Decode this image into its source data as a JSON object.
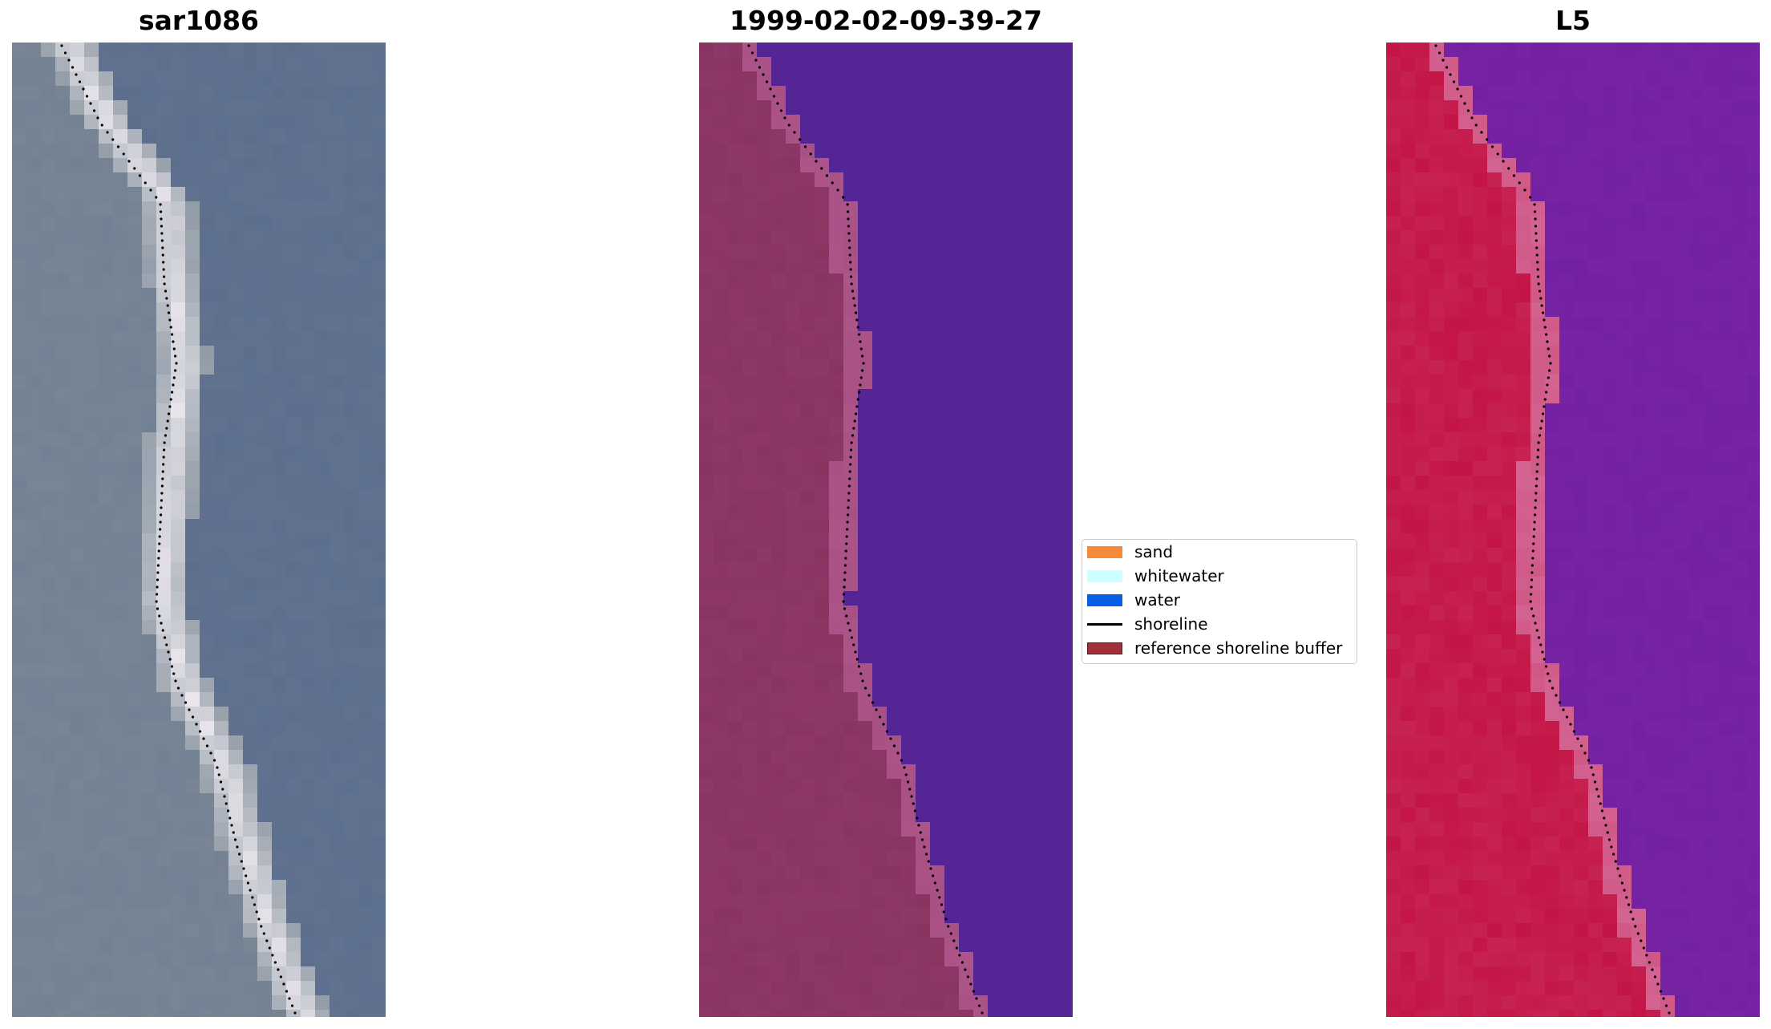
{
  "panels": [
    {
      "title": "sar1086",
      "kind": "rgb"
    },
    {
      "title": "1999-02-02-09-39-27",
      "kind": "classified"
    },
    {
      "title": "L5",
      "kind": "index"
    }
  ],
  "legend": {
    "items": [
      {
        "label": "sand",
        "color": "#f58b3a",
        "type": "patch"
      },
      {
        "label": "whitewater",
        "color": "#ccffff",
        "type": "patch"
      },
      {
        "label": "water",
        "color": "#0a5ee6",
        "type": "patch"
      },
      {
        "label": "shoreline",
        "color": "#000000",
        "type": "line"
      },
      {
        "label": "reference shoreline buffer",
        "color": "#a0303a",
        "type": "patch"
      }
    ]
  },
  "colors": {
    "rgb_water": "#5c6e8e",
    "rgb_land": "#7d8a96",
    "rgb_surf": "#e9e6ec",
    "class_land": "#8a3462",
    "class_water": "#552495",
    "class_buffer": "#b35a90",
    "index_land": "#c41848",
    "index_water": "#7a26a6",
    "index_buffer": "#d46a98",
    "shoreline": "#000000"
  }
}
